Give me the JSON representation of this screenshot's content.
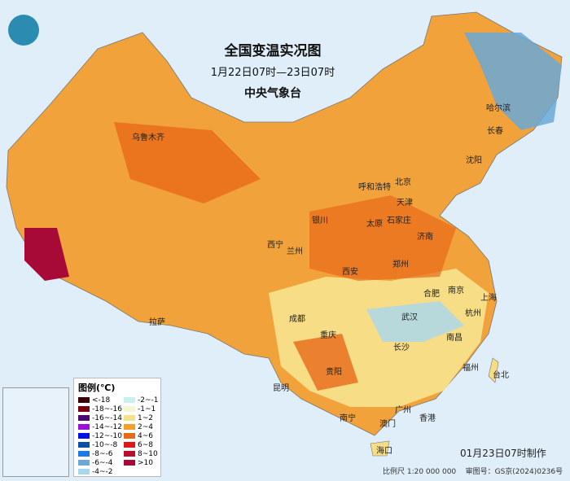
{
  "header": {
    "title": "全国变温实况图",
    "period": "1月22日07时—23日07时",
    "issuer": "中央气象台"
  },
  "logo": {
    "icon": "cma-logo"
  },
  "cities": [
    {
      "name": "乌鲁木齐"
    },
    {
      "name": "哈尔滨"
    },
    {
      "name": "长春"
    },
    {
      "name": "沈阳"
    },
    {
      "name": "呼和浩特"
    },
    {
      "name": "北京"
    },
    {
      "name": "天津"
    },
    {
      "name": "石家庄"
    },
    {
      "name": "太原"
    },
    {
      "name": "银川"
    },
    {
      "name": "西宁"
    },
    {
      "name": "兰州"
    },
    {
      "name": "济南"
    },
    {
      "name": "郑州"
    },
    {
      "name": "西安"
    },
    {
      "name": "合肥"
    },
    {
      "name": "南京"
    },
    {
      "name": "上海"
    },
    {
      "name": "成都"
    },
    {
      "name": "武汉"
    },
    {
      "name": "杭州"
    },
    {
      "name": "拉萨"
    },
    {
      "name": "重庆"
    },
    {
      "name": "南昌"
    },
    {
      "name": "长沙"
    },
    {
      "name": "贵阳"
    },
    {
      "name": "福州"
    },
    {
      "name": "台北"
    },
    {
      "name": "昆明"
    },
    {
      "name": "广州"
    },
    {
      "name": "南宁"
    },
    {
      "name": "澳门"
    },
    {
      "name": "香港"
    },
    {
      "name": "海口"
    }
  ],
  "legend": {
    "title": "图例(℃)",
    "items": [
      {
        "label": "<-18",
        "color": "#3a0008"
      },
      {
        "label": "-2~-1",
        "color": "#c8f0ee"
      },
      {
        "label": "-18~-16",
        "color": "#7a0010"
      },
      {
        "label": "-1~1",
        "color": "#f6f6d2"
      },
      {
        "label": "-16~-14",
        "color": "#4b0a6e"
      },
      {
        "label": "1~2",
        "color": "#f6e08a"
      },
      {
        "label": "-14~-12",
        "color": "#9a10d8"
      },
      {
        "label": "2~4",
        "color": "#f3a02a"
      },
      {
        "label": "-12~-10",
        "color": "#0010e8"
      },
      {
        "label": "4~6",
        "color": "#e86a18"
      },
      {
        "label": "-10~-8",
        "color": "#0a50a8"
      },
      {
        "label": "6~8",
        "color": "#e01818"
      },
      {
        "label": "-8~-6",
        "color": "#1a7ae8"
      },
      {
        "label": "8~10",
        "color": "#b8102a"
      },
      {
        "label": "-6~-4",
        "color": "#6aa8d8"
      },
      {
        "label": ">10",
        "color": "#a80a38"
      },
      {
        "label": "-4~-2",
        "color": "#a8d8f0"
      }
    ]
  },
  "footer": {
    "made": "01月23日07时制作",
    "scale": "比例尺 1:20 000 000",
    "review": "审图号：GS京(2024)0236号"
  }
}
